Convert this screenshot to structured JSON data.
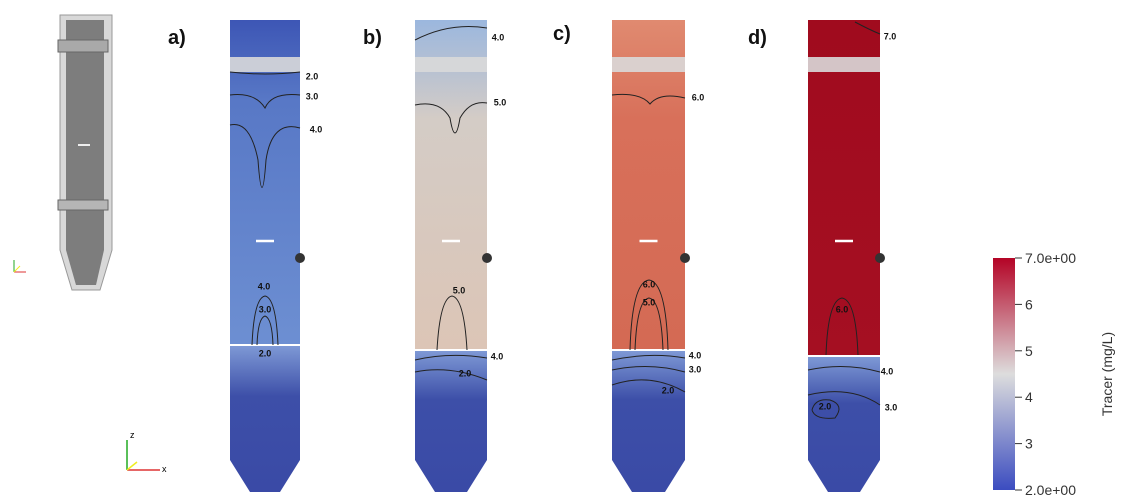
{
  "panels": [
    {
      "label": "a)",
      "contour_labels": [
        "2.0",
        "3.0",
        "4.0",
        "4.0",
        "3.0",
        "2.0"
      ]
    },
    {
      "label": "b)",
      "contour_labels": [
        "4.0",
        "5.0",
        "5.0",
        "4.0",
        "2.0"
      ]
    },
    {
      "label": "c)",
      "contour_labels": [
        "6.0",
        "6.0",
        "5.0",
        "4.0",
        "3.0",
        "2.0"
      ]
    },
    {
      "label": "d)",
      "contour_labels": [
        "7.0",
        "6.0",
        "4.0",
        "2.0",
        "3.0"
      ]
    }
  ],
  "axes_triad": [
    "z",
    "x"
  ],
  "colorbar": {
    "title": "Tracer (mg/L)",
    "range": [
      2,
      7
    ],
    "ticks": [
      {
        "value": 7,
        "label": "7.0e+00"
      },
      6,
      5,
      4,
      3,
      {
        "value": 2,
        "label": "2.0e+00"
      }
    ]
  }
}
